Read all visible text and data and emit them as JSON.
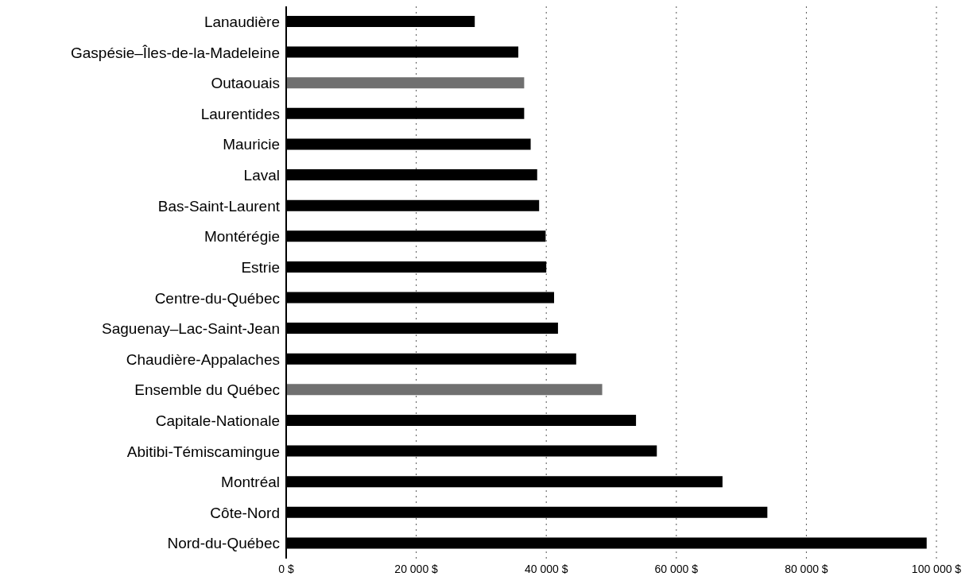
{
  "chart_data": {
    "type": "bar",
    "orientation": "horizontal",
    "categories": [
      "Lanaudière",
      "Gaspésie–Îles-de-la-Madeleine",
      "Outaouais",
      "Laurentides",
      "Mauricie",
      "Laval",
      "Bas-Saint-Laurent",
      "Montérégie",
      "Estrie",
      "Centre-du-Québec",
      "Saguenay–Lac-Saint-Jean",
      "Chaudière-Appalaches",
      "Ensemble du Québec",
      "Capitale-Nationale",
      "Abitibi-Témiscamingue",
      "Montréal",
      "Côte-Nord",
      "Nord-du-Québec"
    ],
    "values": [
      29000,
      35700,
      36600,
      36600,
      37600,
      38600,
      38900,
      39900,
      40000,
      41200,
      41800,
      44600,
      48600,
      53800,
      57000,
      67100,
      74000,
      98500
    ],
    "colors": [
      "#000000",
      "#000000",
      "#707070",
      "#000000",
      "#000000",
      "#000000",
      "#000000",
      "#000000",
      "#000000",
      "#000000",
      "#000000",
      "#000000",
      "#707070",
      "#000000",
      "#000000",
      "#000000",
      "#000000",
      "#000000"
    ],
    "xlim": [
      0,
      100000
    ],
    "xticks": [
      {
        "value": 0,
        "label": "0 $"
      },
      {
        "value": 20000,
        "label": "20 000 $"
      },
      {
        "value": 40000,
        "label": "40 000 $"
      },
      {
        "value": 60000,
        "label": "60 000 $"
      },
      {
        "value": 80000,
        "label": "80 000 $"
      },
      {
        "value": 100000,
        "label": "100 000 $"
      }
    ],
    "grid": "x",
    "legend": false
  }
}
